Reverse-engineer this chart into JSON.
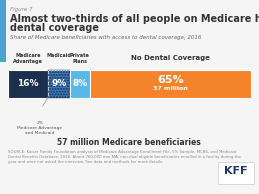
{
  "title_fig": "Figure 7",
  "title_line1": "Almost two-thirds of all people on Medicare have no",
  "title_line2": "dental coverage",
  "subtitle": "Share of Medicare beneficiaries with access to dental coverage, 2016",
  "segments": [
    {
      "label": "Medicare\nAdvantage",
      "value": 16,
      "color": "#1b2f4e",
      "text": "16%",
      "text_color": "#ffffff",
      "hatched": false
    },
    {
      "label": "Medicaid",
      "value": 9,
      "color": "#3a7bbf",
      "text": "9%",
      "text_color": "#ffffff",
      "hatched": true
    },
    {
      "label": "Private\nPlans",
      "value": 8,
      "color": "#5ab8e8",
      "text": "8%",
      "text_color": "#ffffff",
      "hatched": false
    },
    {
      "label": "No Dental Coverage",
      "value": 65,
      "color": "#f5832b",
      "text": "65%",
      "text2": "37 million",
      "text_color": "#ffffff",
      "hatched": false
    }
  ],
  "overlap_label": "2%\nMedicare Advantage\nand Medicaid",
  "footer": "57 million Medicare beneficiaries",
  "source_line1": "SOURCE: Kaiser Family Foundation analysis of Medicare Advantage Enrollment File, 5% Sample, MCBS, and Medicaid",
  "source_line2": "Dental Benefits Database, 2016. About 760,000 non-MA, non-dual eligible beneficiaries enrolled in a facility during the",
  "source_line3": "year and were not asked the interview. See data and methods for more details.",
  "bg_color": "#f5f5f5",
  "accent_color": "#4ba3cb",
  "title_color": "#333333",
  "subtitle_color": "#666666",
  "kff_color": "#1a3a6b"
}
